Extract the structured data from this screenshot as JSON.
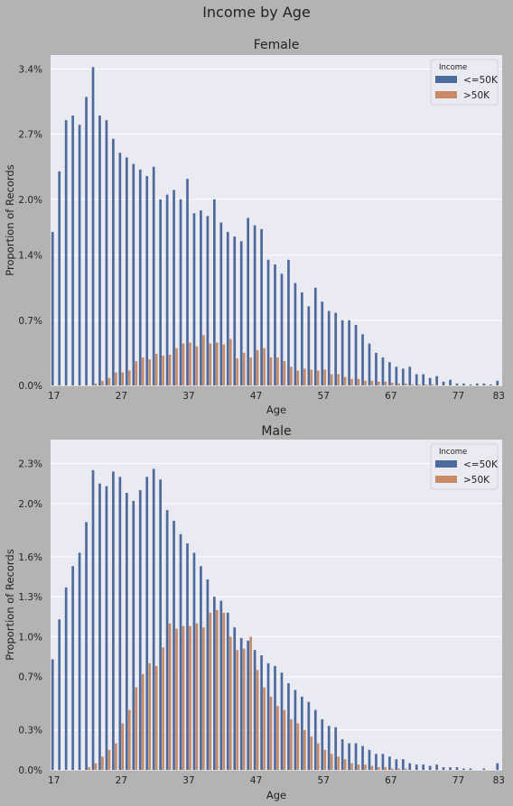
{
  "figure_title": "Income by Age",
  "colors": {
    "le50k": "#4c6a9c",
    "gt50k": "#c98b66",
    "panel_bg": "#eaeaf2",
    "figure_bg": "#b3b3b3",
    "grid": "#ffffff"
  },
  "chart_data": [
    {
      "type": "bar",
      "title": "Female",
      "xlabel": "Age",
      "ylabel": "Proportion of Records",
      "x_start": 17,
      "x_end": 83,
      "xticks": [
        "17",
        "27",
        "37",
        "47",
        "57",
        "67",
        "77",
        "83"
      ],
      "yticks": [
        "0.0%",
        "0.7%",
        "1.4%",
        "2.0%",
        "2.7%",
        "3.4%"
      ],
      "ylim": [
        0,
        3.55
      ],
      "grid": true,
      "legend": {
        "title": "Income",
        "position": "top-right"
      },
      "series": [
        {
          "name": "<=50K",
          "values": [
            1.65,
            2.3,
            2.85,
            2.9,
            2.8,
            3.1,
            3.42,
            2.9,
            2.85,
            2.65,
            2.5,
            2.45,
            2.38,
            2.32,
            2.25,
            2.35,
            2.0,
            2.05,
            2.1,
            2.0,
            2.22,
            1.85,
            1.88,
            1.82,
            2.0,
            1.75,
            1.65,
            1.6,
            1.55,
            1.8,
            1.72,
            1.68,
            1.35,
            1.3,
            1.2,
            1.35,
            1.1,
            1.0,
            0.85,
            1.05,
            0.9,
            0.8,
            0.78,
            0.7,
            0.7,
            0.65,
            0.55,
            0.45,
            0.35,
            0.3,
            0.25,
            0.2,
            0.18,
            0.2,
            0.12,
            0.12,
            0.08,
            0.1,
            0.04,
            0.06,
            0.02,
            0.02,
            0.01,
            0.02,
            0.02,
            0.01,
            0.05
          ]
        },
        {
          "name": ">50K",
          "values": [
            0,
            0,
            0,
            0,
            0,
            0,
            0.02,
            0.05,
            0.08,
            0.14,
            0.14,
            0.16,
            0.26,
            0.3,
            0.28,
            0.34,
            0.32,
            0.33,
            0.4,
            0.45,
            0.46,
            0.42,
            0.54,
            0.45,
            0.46,
            0.44,
            0.5,
            0.29,
            0.35,
            0.3,
            0.38,
            0.4,
            0.3,
            0.3,
            0.26,
            0.2,
            0.16,
            0.18,
            0.17,
            0.16,
            0.17,
            0.12,
            0.12,
            0.09,
            0.07,
            0.07,
            0.05,
            0.05,
            0.04,
            0.04,
            0.03,
            0.02,
            0.02,
            0.01,
            0.01,
            0.01,
            0.01,
            0,
            0,
            0,
            0,
            0,
            0,
            0,
            0,
            0,
            0
          ]
        }
      ]
    },
    {
      "type": "bar",
      "title": "Male",
      "xlabel": "Age",
      "ylabel": "Proportion of Records",
      "x_start": 17,
      "x_end": 83,
      "xticks": [
        "17",
        "27",
        "37",
        "47",
        "57",
        "67",
        "77",
        "83"
      ],
      "yticks": [
        "0.0%",
        "0.3%",
        "0.7%",
        "1.0%",
        "1.3%",
        "1.6%",
        "2.0%",
        "2.3%"
      ],
      "ylim": [
        0,
        2.48
      ],
      "grid": true,
      "legend": {
        "title": "Income",
        "position": "top-right"
      },
      "series": [
        {
          "name": "<=50K",
          "values": [
            0.83,
            1.13,
            1.37,
            1.53,
            1.63,
            1.86,
            2.25,
            2.15,
            2.13,
            2.24,
            2.2,
            2.08,
            2.02,
            2.1,
            2.2,
            2.26,
            2.18,
            1.95,
            1.87,
            1.77,
            1.7,
            1.63,
            1.53,
            1.43,
            1.3,
            1.27,
            1.18,
            1.07,
            0.99,
            0.97,
            0.9,
            0.86,
            0.8,
            0.78,
            0.73,
            0.65,
            0.6,
            0.55,
            0.51,
            0.45,
            0.38,
            0.33,
            0.32,
            0.23,
            0.2,
            0.2,
            0.18,
            0.15,
            0.12,
            0.12,
            0.1,
            0.08,
            0.08,
            0.05,
            0.04,
            0.04,
            0.03,
            0.04,
            0.02,
            0.02,
            0.02,
            0.01,
            0.01,
            0,
            0.01,
            0,
            0.05
          ]
        },
        {
          "name": ">50K",
          "values": [
            0,
            0,
            0,
            0,
            0,
            0.02,
            0.05,
            0.1,
            0.15,
            0.2,
            0.35,
            0.45,
            0.62,
            0.72,
            0.8,
            0.78,
            0.92,
            1.1,
            1.06,
            1.08,
            1.08,
            1.1,
            1.07,
            1.18,
            1.2,
            1.18,
            1.0,
            0.9,
            0.91,
            1.0,
            0.75,
            0.62,
            0.55,
            0.48,
            0.45,
            0.38,
            0.35,
            0.3,
            0.25,
            0.2,
            0.15,
            0.12,
            0.1,
            0.08,
            0.05,
            0.04,
            0.04,
            0.03,
            0.02,
            0.02,
            0.01,
            0.01,
            0.01,
            0,
            0,
            0,
            0,
            0,
            0,
            0,
            0,
            0,
            0,
            0,
            0,
            0,
            0
          ]
        }
      ]
    }
  ]
}
